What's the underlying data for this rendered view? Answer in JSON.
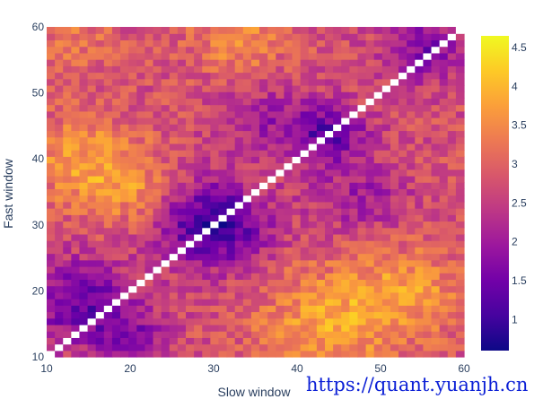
{
  "chart_data": {
    "type": "heatmap",
    "xlabel": "Slow window",
    "ylabel": "Fast window",
    "x_range": [
      10,
      60
    ],
    "y_range": [
      10,
      60
    ],
    "x_ticks": [
      10,
      20,
      30,
      40,
      50,
      60
    ],
    "y_ticks": [
      10,
      20,
      30,
      40,
      50,
      60
    ],
    "x_tick_labels": [
      "10",
      "20",
      "30",
      "40",
      "50",
      "60"
    ],
    "y_tick_labels": [
      "10",
      "20",
      "30",
      "40",
      "50",
      "60"
    ],
    "colorscale": "plasma",
    "zmin": 0.6,
    "zmax": 4.65,
    "colorbar_ticks": [
      1,
      1.5,
      2,
      2.5,
      3,
      3.5,
      4,
      4.5
    ],
    "colorbar_tick_labels": [
      "1",
      "1.5",
      "2",
      "2.5",
      "3",
      "3.5",
      "4",
      "4.5"
    ],
    "diagonal": "empty (fast window = slow window)",
    "regions_approx": [
      {
        "x": [
          10,
          20
        ],
        "y": [
          10,
          24
        ],
        "level": 1.2
      },
      {
        "x": [
          24,
          36
        ],
        "y": [
          24,
          36
        ],
        "level": 0.9
      },
      {
        "x": [
          40,
          48
        ],
        "y": [
          40,
          48
        ],
        "level": 1.2
      },
      {
        "x": [
          52,
          60
        ],
        "y": [
          52,
          60
        ],
        "level": 1.4
      },
      {
        "x": [
          35,
          60
        ],
        "y": [
          10,
          25
        ],
        "level": 3.6
      },
      {
        "x": [
          10,
          30
        ],
        "y": [
          35,
          50
        ],
        "level": 3.2
      },
      {
        "x": [
          30,
          50
        ],
        "y": [
          50,
          60
        ],
        "level": 3.0
      }
    ]
  },
  "watermark": "https://quant.yuanjh.cn"
}
